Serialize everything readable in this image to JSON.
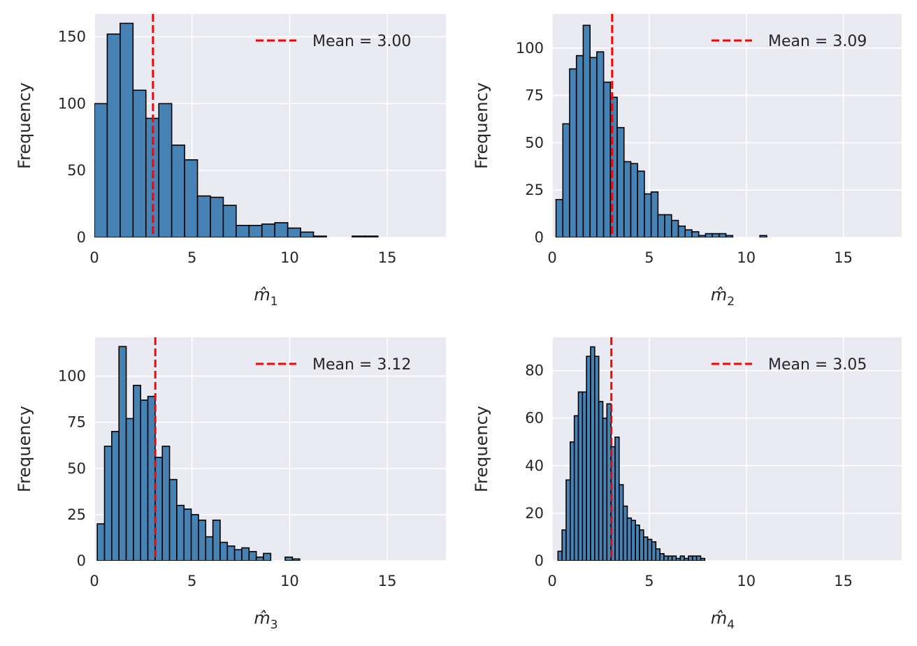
{
  "colors": {
    "panel_background": "#eaeaf2",
    "grid": "#ffffff",
    "bar_fill": "#4682b4",
    "bar_edge": "#000000",
    "mean_line": "#ff0000",
    "text": "#262626"
  },
  "chart_data": [
    {
      "type": "bar",
      "histogram": true,
      "xlabel": "m̂₁",
      "xlabel_base": "m̂",
      "xlabel_sub": "1",
      "ylabel": "Frequency",
      "xlim": [
        0,
        18
      ],
      "ylim": [
        0,
        167
      ],
      "xticks": [
        0,
        5,
        10,
        15
      ],
      "yticks": [
        0,
        50,
        100,
        150
      ],
      "grid": true,
      "legend_position": "top-right",
      "mean": 3.0,
      "mean_label": "Mean = 3.00",
      "bin_width": 0.66,
      "bin_start": 0.0,
      "values": [
        100,
        152,
        160,
        110,
        89,
        100,
        69,
        58,
        31,
        30,
        24,
        9,
        9,
        10,
        11,
        7,
        4,
        1,
        0,
        0,
        1,
        1,
        0,
        0,
        0,
        0,
        0,
        0,
        0,
        0,
        0,
        0,
        0,
        0,
        0,
        0,
        0,
        0,
        0,
        0,
        0,
        0,
        0,
        0,
        0,
        0,
        0,
        0,
        0,
        0,
        0,
        0,
        0,
        0,
        0,
        0,
        0,
        0,
        0,
        0,
        0,
        0,
        0,
        0,
        0,
        0
      ]
    },
    {
      "type": "bar",
      "histogram": true,
      "xlabel": "m̂₂",
      "xlabel_base": "m̂",
      "xlabel_sub": "2",
      "ylabel": "Frequency",
      "xlim": [
        0,
        18
      ],
      "ylim": [
        0,
        118
      ],
      "xticks": [
        0,
        5,
        10,
        15
      ],
      "yticks": [
        0,
        25,
        50,
        75,
        100
      ],
      "grid": true,
      "legend_position": "top-right",
      "mean": 3.09,
      "mean_label": "Mean = 3.09",
      "bin_width": 0.35,
      "bin_start": 0.2,
      "values": [
        20,
        60,
        89,
        96,
        112,
        95,
        98,
        82,
        74,
        58,
        40,
        39,
        35,
        23,
        24,
        12,
        12,
        9,
        6,
        4,
        3,
        1,
        2,
        2,
        2,
        1,
        0,
        0,
        0,
        0,
        1
      ]
    },
    {
      "type": "bar",
      "histogram": true,
      "xlabel": "m̂₃",
      "xlabel_base": "m̂",
      "xlabel_sub": "3",
      "ylabel": "Frequency",
      "xlim": [
        0,
        18
      ],
      "ylim": [
        0,
        121
      ],
      "xticks": [
        0,
        5,
        10,
        15
      ],
      "yticks": [
        0,
        25,
        50,
        75,
        100
      ],
      "grid": true,
      "legend_position": "top-right",
      "mean": 3.12,
      "mean_label": "Mean = 3.12",
      "bin_width": 0.37,
      "bin_start": 0.15,
      "values": [
        20,
        62,
        70,
        116,
        77,
        95,
        87,
        89,
        56,
        62,
        44,
        30,
        28,
        25,
        22,
        13,
        22,
        10,
        8,
        6,
        7,
        5,
        2,
        4,
        0,
        0,
        2,
        1,
        0,
        0,
        0,
        0,
        0
      ]
    },
    {
      "type": "bar",
      "histogram": true,
      "xlabel": "m̂₄",
      "xlabel_base": "m̂",
      "xlabel_sub": "4",
      "ylabel": "Frequency",
      "xlim": [
        0,
        18
      ],
      "ylim": [
        0,
        94
      ],
      "xticks": [
        0,
        5,
        10,
        15
      ],
      "yticks": [
        0,
        20,
        40,
        60,
        80
      ],
      "grid": true,
      "legend_position": "top-right",
      "mean": 3.05,
      "mean_label": "Mean = 3.05",
      "bin_width": 0.21,
      "bin_start": 0.3,
      "values": [
        4,
        13,
        34,
        50,
        61,
        71,
        71,
        86,
        90,
        86,
        67,
        60,
        66,
        48,
        52,
        32,
        23,
        18,
        17,
        15,
        13,
        10,
        9,
        8,
        5,
        3,
        2,
        2,
        2,
        1,
        2,
        1,
        2,
        2,
        2,
        1
      ]
    }
  ]
}
